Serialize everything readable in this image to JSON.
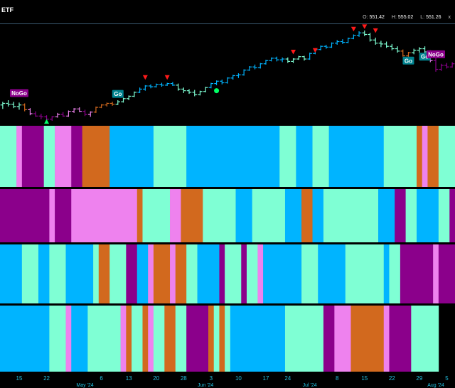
{
  "header": {
    "symbol": "ETF",
    "ohlc": [
      {
        "label": "O:",
        "value": "551.42"
      },
      {
        "label": "H:",
        "value": "555.02"
      },
      {
        "label": "L:",
        "value": "551.26"
      }
    ],
    "close_symbol": "x"
  },
  "colors": {
    "background": "#000000",
    "strong_bull": "#00b4ff",
    "weak_bull": "#7fffd4",
    "neutral": "#d2691e",
    "weak_bear": "#ee82ee",
    "strong_bear": "#8b008b",
    "tag_go_bg": "#00838f",
    "tag_nogo_bg": "#8b008b",
    "up_triangle": "#00ff66",
    "down_triangle": "#ff1a1a",
    "axis_text": "#22c0e0"
  },
  "chart_data": {
    "type": "bar",
    "description_type": "ohlc-price-with-gonogo-heatmap-panels",
    "y_range": [
      495,
      556
    ],
    "bars": [
      {
        "o": 505.0,
        "h": 507.0,
        "l": 502.5,
        "c": 506.0,
        "k": "weak_bull"
      },
      {
        "o": 506.0,
        "h": 508.0,
        "l": 504.0,
        "c": 505.5,
        "k": "weak_bull"
      },
      {
        "o": 505.5,
        "h": 507.0,
        "l": 503.0,
        "c": 504.0,
        "k": "weak_bull"
      },
      {
        "o": 504.0,
        "h": 506.5,
        "l": 502.0,
        "c": 505.0,
        "k": "weak_bull"
      },
      {
        "o": 505.0,
        "h": 506.0,
        "l": 501.0,
        "c": 502.0,
        "k": "neutral"
      },
      {
        "o": 502.0,
        "h": 503.0,
        "l": 498.5,
        "c": 499.5,
        "k": "weak_bear"
      },
      {
        "o": 499.5,
        "h": 501.0,
        "l": 497.5,
        "c": 498.0,
        "k": "strong_bear"
      },
      {
        "o": 498.0,
        "h": 499.5,
        "l": 496.0,
        "c": 497.5,
        "k": "strong_bear"
      },
      {
        "o": 497.5,
        "h": 498.5,
        "l": 495.5,
        "c": 496.0,
        "k": "strong_bear"
      },
      {
        "o": 496.0,
        "h": 498.0,
        "l": 495.0,
        "c": 497.5,
        "k": "strong_bear"
      },
      {
        "o": 497.5,
        "h": 500.0,
        "l": 497.0,
        "c": 499.0,
        "k": "weak_bear"
      },
      {
        "o": 499.0,
        "h": 500.5,
        "l": 497.5,
        "c": 498.0,
        "k": "strong_bear"
      },
      {
        "o": 498.0,
        "h": 501.5,
        "l": 497.5,
        "c": 501.0,
        "k": "weak_bear"
      },
      {
        "o": 501.0,
        "h": 503.0,
        "l": 500.0,
        "c": 502.5,
        "k": "weak_bear"
      },
      {
        "o": 502.5,
        "h": 503.5,
        "l": 500.5,
        "c": 501.0,
        "k": "weak_bear"
      },
      {
        "o": 501.0,
        "h": 502.0,
        "l": 498.0,
        "c": 499.0,
        "k": "strong_bear"
      },
      {
        "o": 499.0,
        "h": 501.0,
        "l": 497.5,
        "c": 500.5,
        "k": "weak_bear"
      },
      {
        "o": 500.5,
        "h": 504.0,
        "l": 500.0,
        "c": 503.5,
        "k": "neutral"
      },
      {
        "o": 503.5,
        "h": 505.5,
        "l": 503.0,
        "c": 505.0,
        "k": "neutral"
      },
      {
        "o": 505.0,
        "h": 506.5,
        "l": 504.0,
        "c": 506.0,
        "k": "neutral"
      },
      {
        "o": 506.0,
        "h": 507.0,
        "l": 504.5,
        "c": 505.5,
        "k": "neutral"
      },
      {
        "o": 505.5,
        "h": 508.0,
        "l": 505.0,
        "c": 507.0,
        "k": "weak_bull"
      },
      {
        "o": 507.0,
        "h": 509.5,
        "l": 506.5,
        "c": 509.0,
        "k": "weak_bull"
      },
      {
        "o": 509.0,
        "h": 511.0,
        "l": 508.0,
        "c": 510.5,
        "k": "weak_bull"
      },
      {
        "o": 510.5,
        "h": 513.5,
        "l": 510.0,
        "c": 513.0,
        "k": "weak_bull"
      },
      {
        "o": 513.0,
        "h": 516.0,
        "l": 512.5,
        "c": 515.0,
        "k": "strong_bull"
      },
      {
        "o": 515.0,
        "h": 517.5,
        "l": 514.0,
        "c": 517.0,
        "k": "strong_bull"
      },
      {
        "o": 517.0,
        "h": 518.0,
        "l": 515.5,
        "c": 516.5,
        "k": "strong_bull"
      },
      {
        "o": 516.5,
        "h": 518.5,
        "l": 516.0,
        "c": 518.0,
        "k": "strong_bull"
      },
      {
        "o": 518.0,
        "h": 519.0,
        "l": 516.5,
        "c": 517.5,
        "k": "strong_bull"
      },
      {
        "o": 517.5,
        "h": 519.0,
        "l": 517.0,
        "c": 518.5,
        "k": "strong_bull"
      },
      {
        "o": 518.5,
        "h": 519.5,
        "l": 517.0,
        "c": 517.5,
        "k": "strong_bull"
      },
      {
        "o": 517.5,
        "h": 518.5,
        "l": 514.0,
        "c": 515.0,
        "k": "weak_bull"
      },
      {
        "o": 515.0,
        "h": 516.0,
        "l": 512.5,
        "c": 514.0,
        "k": "weak_bull"
      },
      {
        "o": 514.0,
        "h": 515.0,
        "l": 512.0,
        "c": 513.0,
        "k": "weak_bull"
      },
      {
        "o": 513.0,
        "h": 514.5,
        "l": 510.5,
        "c": 511.5,
        "k": "weak_bull"
      },
      {
        "o": 511.5,
        "h": 514.0,
        "l": 511.0,
        "c": 513.5,
        "k": "weak_bull"
      },
      {
        "o": 513.5,
        "h": 516.5,
        "l": 513.0,
        "c": 516.0,
        "k": "weak_bull"
      },
      {
        "o": 516.0,
        "h": 519.0,
        "l": 515.5,
        "c": 518.5,
        "k": "strong_bull"
      },
      {
        "o": 518.5,
        "h": 520.5,
        "l": 517.5,
        "c": 520.0,
        "k": "strong_bull"
      },
      {
        "o": 520.0,
        "h": 521.0,
        "l": 518.0,
        "c": 519.0,
        "k": "strong_bull"
      },
      {
        "o": 519.0,
        "h": 522.5,
        "l": 518.5,
        "c": 522.0,
        "k": "strong_bull"
      },
      {
        "o": 522.0,
        "h": 524.0,
        "l": 521.0,
        "c": 523.5,
        "k": "strong_bull"
      },
      {
        "o": 523.5,
        "h": 525.0,
        "l": 522.0,
        "c": 524.0,
        "k": "strong_bull"
      },
      {
        "o": 524.0,
        "h": 527.5,
        "l": 523.5,
        "c": 527.0,
        "k": "strong_bull"
      },
      {
        "o": 527.0,
        "h": 529.5,
        "l": 526.5,
        "c": 529.0,
        "k": "strong_bull"
      },
      {
        "o": 529.0,
        "h": 530.5,
        "l": 527.5,
        "c": 528.5,
        "k": "strong_bull"
      },
      {
        "o": 528.5,
        "h": 531.5,
        "l": 528.0,
        "c": 531.0,
        "k": "strong_bull"
      },
      {
        "o": 531.0,
        "h": 533.5,
        "l": 530.5,
        "c": 533.0,
        "k": "strong_bull"
      },
      {
        "o": 533.0,
        "h": 535.0,
        "l": 532.5,
        "c": 534.5,
        "k": "strong_bull"
      },
      {
        "o": 534.5,
        "h": 535.5,
        "l": 532.5,
        "c": 533.5,
        "k": "strong_bull"
      },
      {
        "o": 533.5,
        "h": 535.0,
        "l": 532.0,
        "c": 534.0,
        "k": "strong_bull"
      },
      {
        "o": 534.0,
        "h": 535.0,
        "l": 531.5,
        "c": 532.5,
        "k": "weak_bull"
      },
      {
        "o": 532.5,
        "h": 534.5,
        "l": 531.5,
        "c": 534.0,
        "k": "weak_bull"
      },
      {
        "o": 534.0,
        "h": 536.0,
        "l": 533.5,
        "c": 535.5,
        "k": "weak_bull"
      },
      {
        "o": 535.5,
        "h": 536.0,
        "l": 533.0,
        "c": 534.0,
        "k": "weak_bull"
      },
      {
        "o": 534.0,
        "h": 538.0,
        "l": 533.5,
        "c": 537.5,
        "k": "strong_bull"
      },
      {
        "o": 537.5,
        "h": 540.5,
        "l": 537.0,
        "c": 540.0,
        "k": "strong_bull"
      },
      {
        "o": 540.0,
        "h": 542.5,
        "l": 539.5,
        "c": 542.0,
        "k": "strong_bull"
      },
      {
        "o": 542.0,
        "h": 543.0,
        "l": 540.5,
        "c": 541.5,
        "k": "strong_bull"
      },
      {
        "o": 541.5,
        "h": 544.5,
        "l": 541.0,
        "c": 544.0,
        "k": "strong_bull"
      },
      {
        "o": 544.0,
        "h": 546.0,
        "l": 543.0,
        "c": 545.0,
        "k": "strong_bull"
      },
      {
        "o": 545.0,
        "h": 546.5,
        "l": 543.5,
        "c": 544.5,
        "k": "strong_bull"
      },
      {
        "o": 544.5,
        "h": 547.5,
        "l": 544.0,
        "c": 547.0,
        "k": "strong_bull"
      },
      {
        "o": 547.0,
        "h": 549.5,
        "l": 546.5,
        "c": 549.0,
        "k": "strong_bull"
      },
      {
        "o": 549.0,
        "h": 551.5,
        "l": 548.0,
        "c": 550.5,
        "k": "strong_bull"
      },
      {
        "o": 550.5,
        "h": 552.0,
        "l": 548.5,
        "c": 549.5,
        "k": "weak_bull"
      },
      {
        "o": 549.5,
        "h": 550.5,
        "l": 545.0,
        "c": 546.0,
        "k": "weak_bull"
      },
      {
        "o": 546.0,
        "h": 547.5,
        "l": 543.0,
        "c": 544.0,
        "k": "weak_bull"
      },
      {
        "o": 544.0,
        "h": 545.5,
        "l": 541.5,
        "c": 543.5,
        "k": "weak_bull"
      },
      {
        "o": 543.5,
        "h": 545.0,
        "l": 541.0,
        "c": 542.0,
        "k": "weak_bull"
      },
      {
        "o": 542.0,
        "h": 543.5,
        "l": 539.5,
        "c": 540.5,
        "k": "weak_bull"
      },
      {
        "o": 540.5,
        "h": 542.0,
        "l": 538.0,
        "c": 539.0,
        "k": "weak_bull"
      },
      {
        "o": 539.0,
        "h": 540.0,
        "l": 535.5,
        "c": 536.0,
        "k": "neutral"
      },
      {
        "o": 536.0,
        "h": 538.5,
        "l": 534.5,
        "c": 538.0,
        "k": "neutral"
      },
      {
        "o": 538.0,
        "h": 540.5,
        "l": 537.0,
        "c": 539.5,
        "k": "weak_bull"
      },
      {
        "o": 539.5,
        "h": 541.5,
        "l": 538.0,
        "c": 540.5,
        "k": "weak_bull"
      },
      {
        "o": 540.5,
        "h": 542.0,
        "l": 537.5,
        "c": 538.5,
        "k": "weak_bull"
      },
      {
        "o": 538.5,
        "h": 539.5,
        "l": 532.0,
        "c": 533.0,
        "k": "weak_bear"
      },
      {
        "o": 533.0,
        "h": 534.5,
        "l": 526.0,
        "c": 527.5,
        "k": "strong_bear"
      },
      {
        "o": 527.5,
        "h": 531.0,
        "l": 526.5,
        "c": 530.0,
        "k": "strong_bear"
      },
      {
        "o": 530.0,
        "h": 531.5,
        "l": 528.0,
        "c": 529.0,
        "k": "strong_bear"
      },
      {
        "o": 529.0,
        "h": 532.0,
        "l": 528.5,
        "c": 531.0,
        "k": "strong_bear"
      }
    ],
    "signals": [
      {
        "type": "tag",
        "label": "NoGo",
        "bar": 3,
        "price": 512.5
      },
      {
        "type": "tag",
        "label": "Go",
        "bar": 21,
        "price": 512.0
      },
      {
        "type": "tag",
        "label": "Go",
        "bar": 74,
        "price": 533.0
      },
      {
        "type": "tag",
        "label": "Go",
        "bar": 77,
        "price": 535.5
      },
      {
        "type": "tag",
        "label": "NoGo",
        "bar": 79,
        "price": 537.0
      },
      {
        "type": "down_triangle",
        "bar": 26,
        "price": 522.5
      },
      {
        "type": "down_triangle",
        "bar": 30,
        "price": 522.5
      },
      {
        "type": "down_triangle",
        "bar": 53,
        "price": 538.5
      },
      {
        "type": "down_triangle",
        "bar": 57,
        "price": 539.5
      },
      {
        "type": "down_triangle",
        "bar": 64,
        "price": 553.0
      },
      {
        "type": "down_triangle",
        "bar": 66,
        "price": 554.5
      },
      {
        "type": "down_triangle",
        "bar": 68,
        "price": 552.0
      },
      {
        "type": "up_triangle",
        "bar": 8,
        "price": 494.5
      },
      {
        "type": "dot",
        "bar": 39,
        "price": 514.0
      }
    ],
    "x_ticks": [
      {
        "bar": 3,
        "label": "15"
      },
      {
        "bar": 8,
        "label": "22"
      },
      {
        "bar": 18,
        "label": "6"
      },
      {
        "bar": 23,
        "label": "13"
      },
      {
        "bar": 28,
        "label": "20"
      },
      {
        "bar": 33,
        "label": "28"
      },
      {
        "bar": 38,
        "label": "3"
      },
      {
        "bar": 43,
        "label": "10"
      },
      {
        "bar": 48,
        "label": "17"
      },
      {
        "bar": 52,
        "label": "24"
      },
      {
        "bar": 61,
        "label": "8"
      },
      {
        "bar": 66,
        "label": "15"
      },
      {
        "bar": 71,
        "label": "22"
      },
      {
        "bar": 76,
        "label": "29"
      },
      {
        "bar": 81,
        "label": "5"
      }
    ],
    "month_labels": [
      {
        "bar": 15,
        "label": "May '24"
      },
      {
        "bar": 37,
        "label": "Jun '24"
      },
      {
        "bar": 56,
        "label": "Jul '24"
      },
      {
        "bar": 79,
        "label": "Aug '24"
      }
    ],
    "panels": [
      [
        [
          "weak_bull",
          3
        ],
        [
          "weak_bear",
          1
        ],
        [
          "strong_bear",
          4
        ],
        [
          "weak_bull",
          2
        ],
        [
          "weak_bear",
          3
        ],
        [
          "strong_bear",
          2
        ],
        [
          "neutral",
          5
        ],
        [
          "strong_bull",
          8
        ],
        [
          "weak_bull",
          6
        ],
        [
          "strong_bull",
          17
        ],
        [
          "weak_bull",
          3
        ],
        [
          "strong_bull",
          3
        ],
        [
          "weak_bull",
          3
        ],
        [
          "strong_bull",
          10
        ],
        [
          "weak_bull",
          6
        ],
        [
          "neutral",
          1
        ],
        [
          "weak_bear",
          1
        ],
        [
          "neutral",
          2
        ],
        [
          "weak_bull",
          3
        ],
        [
          "strong_bear",
          5
        ]
      ],
      [
        [
          "strong_bear",
          9
        ],
        [
          "weak_bear",
          1
        ],
        [
          "strong_bear",
          3
        ],
        [
          "weak_bear",
          12
        ],
        [
          "neutral",
          1
        ],
        [
          "weak_bull",
          5
        ],
        [
          "weak_bear",
          2
        ],
        [
          "neutral",
          4
        ],
        [
          "weak_bull",
          6
        ],
        [
          "strong_bull",
          3
        ],
        [
          "weak_bull",
          6
        ],
        [
          "strong_bull",
          3
        ],
        [
          "neutral",
          2
        ],
        [
          "strong_bull",
          2
        ],
        [
          "weak_bull",
          10
        ],
        [
          "strong_bull",
          3
        ],
        [
          "strong_bear",
          2
        ],
        [
          "weak_bull",
          2
        ],
        [
          "strong_bull",
          4
        ],
        [
          "weak_bull",
          2
        ],
        [
          "strong_bear",
          3
        ]
      ],
      [
        [
          "strong_bull",
          4
        ],
        [
          "weak_bull",
          3
        ],
        [
          "strong_bull",
          2
        ],
        [
          "weak_bull",
          3
        ],
        [
          "strong_bull",
          5
        ],
        [
          "weak_bull",
          1
        ],
        [
          "neutral",
          2
        ],
        [
          "weak_bull",
          3
        ],
        [
          "strong_bear",
          2
        ],
        [
          "strong_bull",
          2
        ],
        [
          "weak_bear",
          1
        ],
        [
          "neutral",
          3
        ],
        [
          "weak_bear",
          1
        ],
        [
          "neutral",
          2
        ],
        [
          "weak_bull",
          2
        ],
        [
          "strong_bull",
          4
        ],
        [
          "strong_bear",
          1
        ],
        [
          "weak_bull",
          3
        ],
        [
          "strong_bear",
          1
        ],
        [
          "weak_bull",
          2
        ],
        [
          "weak_bear",
          1
        ],
        [
          "strong_bull",
          7
        ],
        [
          "weak_bull",
          3
        ],
        [
          "strong_bull",
          5
        ],
        [
          "weak_bull",
          7
        ],
        [
          "strong_bull",
          1
        ],
        [
          "weak_bull",
          2
        ],
        [
          "strong_bear",
          6
        ],
        [
          "weak_bear",
          1
        ],
        [
          "strong_bear",
          5
        ]
      ],
      [
        [
          "strong_bull",
          9
        ],
        [
          "weak_bull",
          3
        ],
        [
          "weak_bear",
          1
        ],
        [
          "strong_bull",
          3
        ],
        [
          "weak_bull",
          6
        ],
        [
          "weak_bear",
          1
        ],
        [
          "neutral",
          1
        ],
        [
          "weak_bull",
          2
        ],
        [
          "neutral",
          1
        ],
        [
          "weak_bear",
          1
        ],
        [
          "weak_bull",
          2
        ],
        [
          "neutral",
          2
        ],
        [
          "weak_bull",
          2
        ],
        [
          "strong_bear",
          4
        ],
        [
          "neutral",
          1
        ],
        [
          "weak_bull",
          1
        ],
        [
          "neutral",
          1
        ],
        [
          "weak_bull",
          1
        ],
        [
          "strong_bull",
          10
        ],
        [
          "weak_bull",
          7
        ],
        [
          "strong_bear",
          2
        ],
        [
          "weak_bear",
          3
        ],
        [
          "neutral",
          6
        ],
        [
          "weak_bear",
          1
        ],
        [
          "strong_bear",
          4
        ],
        [
          "weak_bull",
          5
        ]
      ]
    ]
  }
}
